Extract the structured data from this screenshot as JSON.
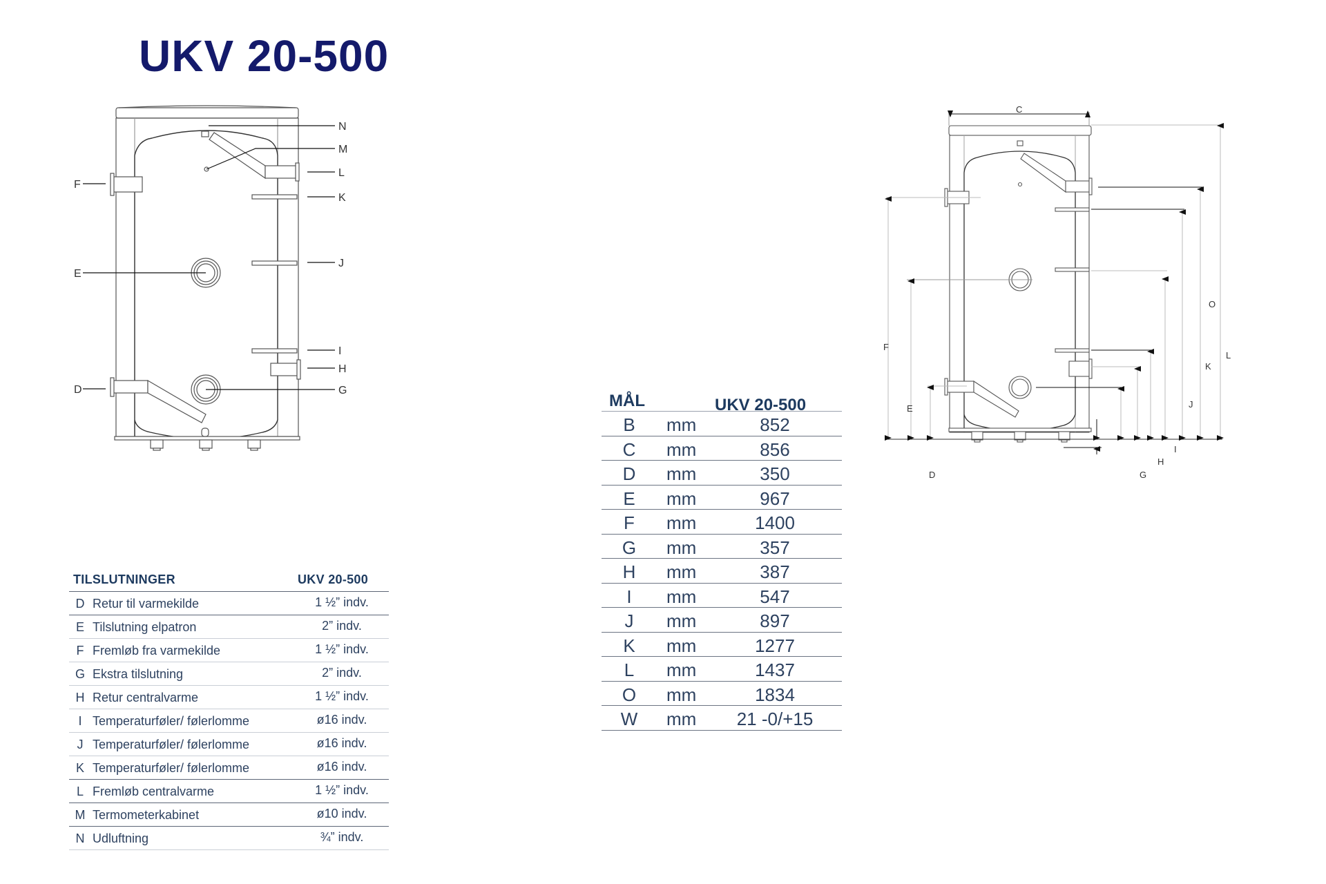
{
  "title": "UKV 20-500",
  "connections_table": {
    "headers": [
      "TILSLUTNINGER",
      "UKV 20-500"
    ],
    "rows": [
      {
        "letter": "D",
        "description": "Retur til varmekilde",
        "value": "1 ½” indv."
      },
      {
        "letter": "E",
        "description": "Tilslutning elpatron",
        "value": "2” indv."
      },
      {
        "letter": "F",
        "description": "Fremløb fra varmekilde",
        "value": "1 ½” indv."
      },
      {
        "letter": "G",
        "description": "Ekstra tilslutning",
        "value": "2” indv."
      },
      {
        "letter": "H",
        "description": "Retur centralvarme",
        "value": "1 ½” indv."
      },
      {
        "letter": "I",
        "description": "Temperaturføler/ følerlomme",
        "value": "ø16 indv."
      },
      {
        "letter": "J",
        "description": "Temperaturføler/ følerlomme",
        "value": "ø16 indv."
      },
      {
        "letter": "K",
        "description": "Temperaturføler/ følerlomme",
        "value": "ø16 indv."
      },
      {
        "letter": "L",
        "description": "Fremløb centralvarme",
        "value": "1 ½” indv."
      },
      {
        "letter": "M",
        "description": "Termometerkabinet",
        "value": "ø10 indv."
      },
      {
        "letter": "N",
        "description": "Udluftning",
        "value": "¾” indv."
      }
    ]
  },
  "dimensions_table": {
    "headers": [
      "MÅL",
      "UKV 20-500"
    ],
    "rows": [
      {
        "letter": "B",
        "unit": "mm",
        "value": "852"
      },
      {
        "letter": "C",
        "unit": "mm",
        "value": "856"
      },
      {
        "letter": "D",
        "unit": "mm",
        "value": "350"
      },
      {
        "letter": "E",
        "unit": "mm",
        "value": "967"
      },
      {
        "letter": "F",
        "unit": "mm",
        "value": "1400"
      },
      {
        "letter": "G",
        "unit": "mm",
        "value": "357"
      },
      {
        "letter": "H",
        "unit": "mm",
        "value": "387"
      },
      {
        "letter": "I",
        "unit": "mm",
        "value": "547"
      },
      {
        "letter": "J",
        "unit": "mm",
        "value": "897"
      },
      {
        "letter": "K",
        "unit": "mm",
        "value": "1277"
      },
      {
        "letter": "L",
        "unit": "mm",
        "value": "1437"
      },
      {
        "letter": "O",
        "unit": "mm",
        "value": "1834"
      },
      {
        "letter": "W",
        "unit": "mm",
        "value": "21 -0/+15"
      }
    ]
  },
  "left_diagram": {
    "labels": {
      "N": "N",
      "M": "M",
      "L": "L",
      "K": "K",
      "J": "J",
      "I": "I",
      "H": "H",
      "G": "G",
      "F": "F",
      "E": "E",
      "D": "D"
    }
  },
  "right_diagram": {
    "labels": {
      "C": "C",
      "O": "O",
      "L": "L",
      "K": "K",
      "J": "J",
      "I": "I",
      "H": "H",
      "G": "G",
      "F": "F",
      "E": "E",
      "D": "D"
    }
  },
  "colors": {
    "title": "#141a6b",
    "table_header": "#1d3a5f",
    "table_text": "#2e4260"
  }
}
